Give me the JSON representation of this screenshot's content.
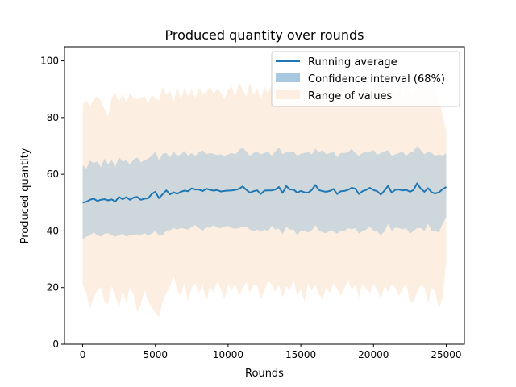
{
  "chart_data": {
    "type": "line",
    "title": "Produced quantity over rounds",
    "xlabel": "Rounds",
    "ylabel": "Produced quantity",
    "xlim": [
      -1250,
      26250
    ],
    "ylim": [
      0,
      105
    ],
    "xticks": [
      0,
      5000,
      10000,
      15000,
      20000,
      25000
    ],
    "yticks": [
      0,
      20,
      40,
      60,
      80,
      100
    ],
    "grid": false,
    "legend_position": "top-right",
    "colors": {
      "mean": "#1f77b4",
      "ci": "#a8c8e0",
      "range": "#fdeee2",
      "ci_overlap": "#ced8dc"
    },
    "x": [
      0,
      250,
      500,
      750,
      1000,
      1250,
      1500,
      1750,
      2000,
      2250,
      2500,
      2750,
      3000,
      3250,
      3500,
      3750,
      4000,
      4250,
      4500,
      4750,
      5000,
      5250,
      5500,
      5750,
      6000,
      6250,
      6500,
      6750,
      7000,
      7250,
      7500,
      7750,
      8000,
      8250,
      8500,
      8750,
      9000,
      9250,
      9500,
      9750,
      10000,
      10250,
      10500,
      10750,
      11000,
      11250,
      11500,
      11750,
      12000,
      12250,
      12500,
      12750,
      13000,
      13250,
      13500,
      13750,
      14000,
      14250,
      14500,
      14750,
      15000,
      15250,
      15500,
      15750,
      16000,
      16250,
      16500,
      16750,
      17000,
      17250,
      17500,
      17750,
      18000,
      18250,
      18500,
      18750,
      19000,
      19250,
      19500,
      19750,
      20000,
      20250,
      20500,
      20750,
      21000,
      21250,
      21500,
      21750,
      22000,
      22250,
      22500,
      22750,
      23000,
      23250,
      23500,
      23750,
      24000,
      24250,
      24500,
      24750,
      25000
    ],
    "series": [
      {
        "name": "Running average",
        "type": "line",
        "values": [
          50.0,
          50.3,
          51.0,
          51.4,
          50.6,
          51.0,
          51.2,
          50.8,
          51.1,
          50.4,
          52.0,
          51.2,
          51.9,
          51.0,
          51.8,
          52.0,
          51.0,
          51.4,
          51.5,
          53.0,
          53.8,
          51.6,
          52.9,
          54.3,
          52.9,
          53.6,
          53.1,
          53.8,
          54.2,
          54.0,
          55.0,
          54.6,
          54.6,
          54.0,
          54.9,
          54.5,
          54.2,
          54.4,
          53.9,
          54.1,
          54.2,
          54.3,
          54.5,
          54.8,
          55.7,
          54.5,
          53.5,
          54.0,
          54.3,
          53.0,
          54.2,
          54.3,
          54.3,
          54.6,
          55.5,
          53.4,
          55.8,
          54.6,
          54.6,
          53.5,
          54.1,
          53.6,
          53.5,
          54.4,
          56.2,
          54.4,
          54.0,
          53.8,
          54.1,
          54.8,
          53.0,
          54.0,
          54.1,
          54.5,
          55.2,
          54.9,
          53.0,
          54.0,
          54.5,
          55.2,
          54.4,
          54.0,
          52.8,
          54.2,
          55.9,
          53.5,
          54.5,
          54.6,
          54.3,
          54.5,
          53.8,
          54.4,
          56.8,
          54.9,
          53.8,
          55.1,
          53.6,
          53.2,
          53.6,
          54.7,
          55.5
        ]
      },
      {
        "name": "Confidence interval (68%)",
        "type": "band",
        "upper": [
          63.2,
          62.0,
          64.8,
          64.0,
          64.5,
          62.5,
          65.5,
          63.5,
          65.0,
          62.8,
          66.0,
          64.5,
          64.9,
          63.5,
          65.2,
          66.0,
          64.2,
          65.0,
          65.5,
          66.5,
          68.0,
          65.0,
          67.2,
          67.5,
          66.0,
          68.0,
          66.5,
          67.0,
          68.2,
          66.5,
          67.5,
          66.5,
          67.8,
          68.5,
          67.0,
          67.5,
          67.2,
          66.8,
          67.0,
          66.5,
          67.0,
          67.5,
          67.0,
          68.5,
          69.5,
          68.0,
          66.5,
          67.5,
          68.0,
          67.0,
          67.5,
          68.0,
          66.5,
          68.0,
          69.5,
          67.0,
          68.0,
          67.8,
          68.0,
          66.5,
          67.2,
          67.5,
          68.0,
          67.0,
          69.0,
          67.8,
          68.5,
          67.0,
          67.5,
          68.0,
          66.0,
          67.5,
          67.5,
          67.8,
          69.0,
          67.5,
          66.5,
          67.5,
          67.8,
          68.0,
          68.5,
          66.8,
          67.5,
          68.0,
          68.5,
          66.5,
          67.0,
          67.5,
          68.0,
          66.5,
          67.8,
          68.0,
          70.0,
          68.5,
          67.0,
          68.0,
          67.5,
          66.5,
          67.0,
          66.5,
          67.5
        ],
        "lower": [
          37.0,
          38.0,
          38.5,
          39.5,
          38.5,
          38.0,
          39.0,
          39.2,
          38.5,
          38.0,
          38.5,
          39.0,
          38.0,
          38.5,
          38.5,
          38.8,
          38.5,
          39.2,
          38.5,
          39.0,
          40.0,
          38.5,
          38.5,
          40.2,
          40.2,
          41.0,
          40.5,
          41.0,
          40.8,
          40.5,
          41.5,
          42.0,
          41.0,
          40.0,
          41.5,
          41.0,
          42.0,
          41.2,
          41.0,
          41.5,
          41.8,
          41.0,
          40.8,
          41.0,
          41.5,
          41.5,
          40.5,
          39.8,
          40.5,
          39.8,
          40.5,
          40.0,
          41.8,
          40.5,
          40.8,
          38.8,
          41.5,
          40.5,
          40.5,
          38.5,
          40.2,
          40.0,
          39.5,
          40.2,
          42.0,
          40.2,
          39.5,
          39.2,
          40.2,
          39.8,
          39.0,
          40.0,
          40.0,
          41.0,
          40.5,
          41.0,
          39.0,
          40.0,
          40.5,
          41.5,
          40.0,
          39.8,
          38.5,
          39.8,
          42.5,
          40.0,
          41.2,
          41.0,
          40.5,
          41.0,
          39.0,
          40.0,
          41.0,
          41.0,
          40.0,
          42.5,
          40.0,
          40.0,
          39.5,
          42.5,
          45.0
        ]
      },
      {
        "name": "Range of values",
        "type": "band",
        "upper": [
          84.5,
          86.0,
          84.0,
          86.5,
          87.5,
          86.0,
          83.0,
          80.5,
          87.0,
          88.5,
          85.5,
          88.5,
          85.5,
          88.5,
          87.0,
          86.5,
          87.0,
          87.5,
          85.0,
          88.0,
          87.0,
          86.0,
          91.0,
          88.0,
          89.5,
          85.5,
          91.0,
          86.5,
          90.5,
          87.5,
          90.0,
          87.0,
          90.5,
          88.5,
          89.0,
          91.0,
          88.5,
          90.0,
          89.0,
          86.5,
          90.0,
          91.0,
          87.5,
          92.5,
          90.0,
          87.5,
          92.5,
          88.0,
          90.5,
          86.5,
          91.0,
          88.5,
          91.5,
          90.0,
          93.5,
          88.0,
          91.0,
          90.0,
          91.5,
          89.0,
          90.0,
          92.0,
          88.5,
          91.5,
          91.5,
          87.5,
          92.0,
          89.0,
          91.5,
          87.5,
          90.0,
          88.0,
          92.0,
          89.5,
          92.5,
          88.0,
          91.5,
          90.5,
          92.0,
          87.5,
          92.5,
          89.5,
          93.5,
          91.0,
          89.0,
          92.0,
          88.5,
          93.0,
          86.5,
          93.5,
          90.0,
          88.0,
          92.5,
          89.0,
          91.5,
          90.0,
          93.5,
          88.5,
          86.5,
          81.0,
          75.5
        ],
        "lower": [
          21.0,
          18.0,
          12.5,
          16.5,
          19.0,
          20.0,
          15.0,
          14.0,
          20.5,
          17.0,
          13.0,
          18.5,
          15.0,
          20.0,
          17.5,
          11.5,
          14.0,
          19.0,
          15.5,
          13.0,
          11.0,
          9.5,
          15.0,
          18.0,
          20.5,
          24.0,
          19.0,
          17.0,
          21.5,
          15.0,
          20.0,
          21.5,
          18.0,
          21.0,
          15.0,
          20.5,
          18.0,
          22.0,
          19.5,
          16.0,
          21.0,
          19.0,
          21.5,
          17.0,
          19.5,
          22.0,
          18.0,
          21.0,
          20.5,
          16.0,
          19.0,
          22.5,
          21.0,
          18.5,
          21.0,
          16.5,
          20.5,
          19.0,
          23.0,
          17.0,
          19.5,
          15.0,
          21.5,
          19.0,
          21.0,
          17.5,
          16.0,
          20.0,
          18.0,
          21.5,
          19.5,
          17.0,
          20.0,
          22.5,
          19.0,
          21.0,
          16.5,
          21.5,
          19.5,
          18.0,
          21.5,
          19.0,
          16.0,
          20.5,
          18.5,
          21.0,
          20.0,
          17.0,
          19.5,
          21.5,
          14.5,
          15.0,
          18.5,
          21.0,
          20.0,
          14.5,
          20.0,
          18.5,
          12.5,
          16.5,
          29.0
        ]
      }
    ]
  }
}
